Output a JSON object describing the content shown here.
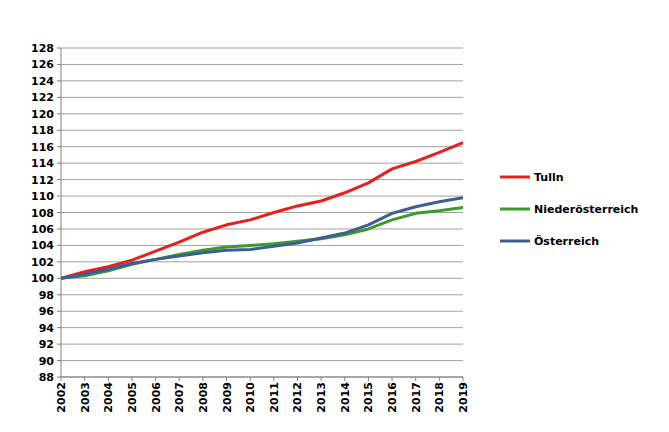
{
  "chart_data": {
    "type": "line",
    "x": [
      2002,
      2003,
      2004,
      2005,
      2006,
      2007,
      2008,
      2009,
      2010,
      2011,
      2012,
      2013,
      2014,
      2015,
      2016,
      2017,
      2018,
      2019
    ],
    "xlim": [
      2002,
      2019
    ],
    "xticks": [
      2002,
      2003,
      2004,
      2005,
      2006,
      2007,
      2008,
      2009,
      2010,
      2011,
      2012,
      2013,
      2014,
      2015,
      2016,
      2017,
      2018,
      2019
    ],
    "ylim": [
      88,
      128
    ],
    "yticks": [
      88,
      90,
      92,
      94,
      96,
      98,
      100,
      102,
      104,
      106,
      108,
      110,
      112,
      114,
      116,
      118,
      120,
      122,
      124,
      126,
      128
    ],
    "grid": true,
    "legend": "right",
    "series": [
      {
        "name": "Tulln",
        "color": "#e8201c",
        "values": [
          100,
          100.8,
          101.4,
          102.2,
          103.3,
          104.4,
          105.6,
          106.5,
          107.1,
          108.0,
          108.8,
          109.4,
          110.4,
          111.6,
          113.3,
          114.2,
          115.3,
          116.5
        ]
      },
      {
        "name": "Niederösterreich",
        "color": "#3a9a2a",
        "values": [
          100,
          100.3,
          100.9,
          101.7,
          102.3,
          102.9,
          103.4,
          103.8,
          104.0,
          104.2,
          104.5,
          104.8,
          105.3,
          106.0,
          107.1,
          107.9,
          108.2,
          108.6
        ]
      },
      {
        "name": "Österreich",
        "color": "#3e5c96",
        "values": [
          100,
          100.5,
          101.1,
          101.8,
          102.3,
          102.7,
          103.1,
          103.4,
          103.5,
          103.9,
          104.3,
          104.9,
          105.5,
          106.5,
          107.9,
          108.7,
          109.3,
          109.8
        ]
      }
    ]
  }
}
